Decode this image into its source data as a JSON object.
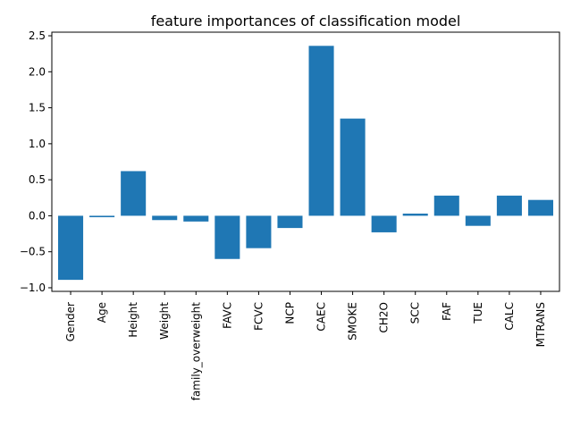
{
  "chart_data": {
    "type": "bar",
    "title": "feature importances of classification model",
    "xlabel": "",
    "ylabel": "",
    "categories": [
      "Gender",
      "Age",
      "Height",
      "Weight",
      "family_overweight",
      "FAVC",
      "FCVC",
      "NCP",
      "CAEC",
      "SMOKE",
      "CH2O",
      "SCC",
      "FAF",
      "TUE",
      "CALC",
      "MTRANS"
    ],
    "values": [
      -0.89,
      -0.02,
      0.62,
      -0.06,
      -0.08,
      -0.6,
      -0.45,
      -0.17,
      2.36,
      1.35,
      -0.23,
      0.03,
      0.28,
      -0.14,
      0.28,
      0.22
    ],
    "ylim": [
      -1.05,
      2.55
    ],
    "yticks": [
      -1.0,
      -0.5,
      0.0,
      0.5,
      1.0,
      1.5,
      2.0,
      2.5
    ],
    "ytick_labels": [
      "−1.0",
      "−0.5",
      "0.0",
      "0.5",
      "1.0",
      "1.5",
      "2.0",
      "2.5"
    ],
    "bar_color": "#1f77b4",
    "grid": false,
    "legend": "none"
  }
}
